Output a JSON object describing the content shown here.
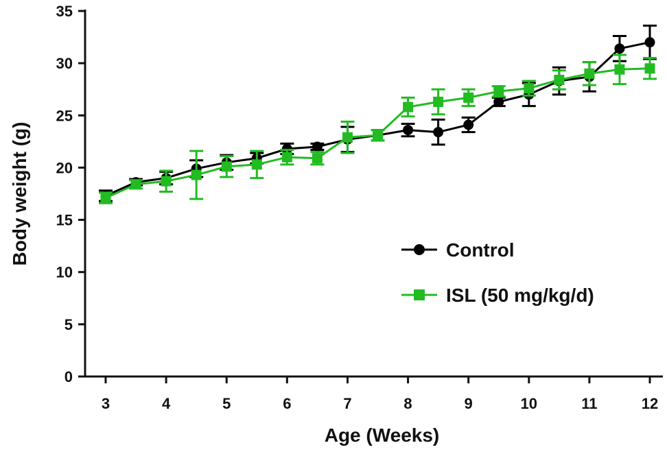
{
  "chart_data": {
    "type": "line",
    "xlabel": "Age (Weeks)",
    "ylabel": "Body weight (g)",
    "xlim": [
      3,
      12
    ],
    "ylim": [
      0,
      35
    ],
    "x_ticks": [
      3,
      4,
      5,
      6,
      7,
      8,
      9,
      10,
      11,
      12
    ],
    "y_ticks": [
      0,
      5,
      10,
      15,
      20,
      25,
      30,
      35
    ],
    "grid": false,
    "legend_position": "center-right",
    "x": [
      3,
      3.5,
      4,
      4.5,
      5,
      5.5,
      6,
      6.5,
      7,
      7.5,
      8,
      8.5,
      9,
      9.5,
      10,
      10.5,
      11,
      11.5,
      12
    ],
    "series": [
      {
        "name": "Control",
        "color": "#000000",
        "marker": "circle",
        "values": [
          17.3,
          18.6,
          19.0,
          19.9,
          20.5,
          20.9,
          21.8,
          22.0,
          22.7,
          23.1,
          23.6,
          23.4,
          24.1,
          26.3,
          27.0,
          28.3,
          28.7,
          31.4,
          32.0
        ],
        "errors": [
          0.5,
          0.3,
          0.6,
          0.8,
          0.7,
          0.5,
          0.5,
          0.3,
          1.2,
          0.5,
          0.6,
          1.2,
          0.7,
          0.4,
          1.1,
          1.3,
          1.4,
          1.2,
          1.6
        ]
      },
      {
        "name": "ISL (50 mg/kg/d)",
        "color": "#22bb22",
        "marker": "square",
        "values": [
          17.1,
          18.4,
          18.7,
          19.3,
          20.1,
          20.3,
          21.0,
          20.9,
          22.9,
          23.1,
          25.8,
          26.3,
          26.7,
          27.3,
          27.6,
          28.4,
          29.0,
          29.4,
          29.5
        ],
        "errors": [
          0.5,
          0.4,
          1.0,
          2.3,
          1.0,
          1.3,
          0.7,
          0.6,
          1.5,
          0.5,
          0.9,
          1.2,
          0.8,
          0.5,
          0.7,
          0.9,
          1.1,
          1.4,
          1.0
        ]
      }
    ]
  }
}
